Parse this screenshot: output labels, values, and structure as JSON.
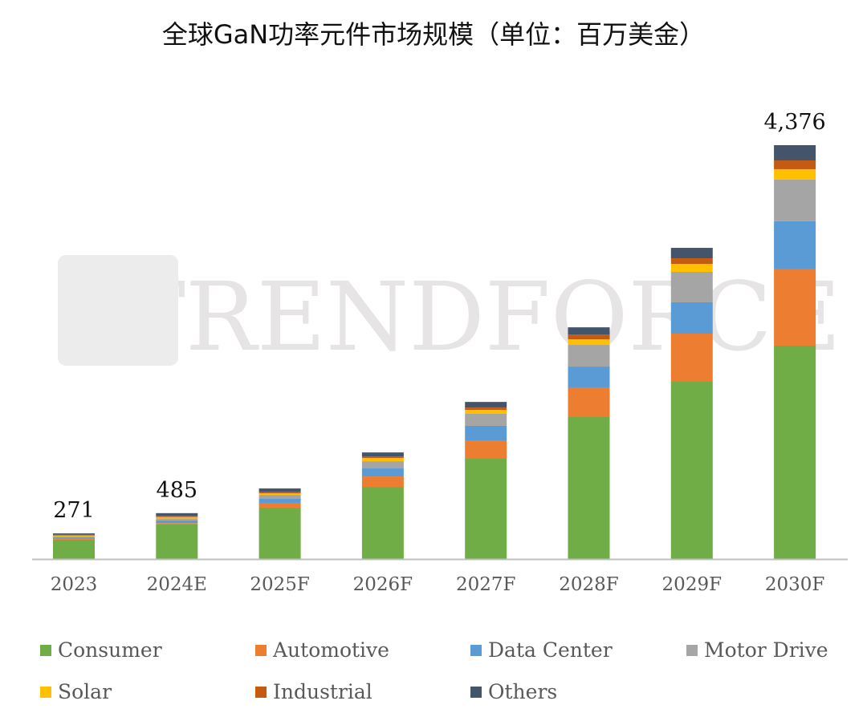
{
  "title": "全球GaN功率元件市场规模（单位：百万美金）",
  "watermark": "TRENDFORCE",
  "chart_data": {
    "type": "bar",
    "stacked": true,
    "title": "全球GaN功率元件市场规模（单位：百万美金）",
    "xlabel": "",
    "ylabel": "",
    "ylim": [
      0,
      4600
    ],
    "grid": false,
    "legend_position": "bottom",
    "categories": [
      "2023",
      "2024E",
      "2025F",
      "2026F",
      "2027F",
      "2028F",
      "2029F",
      "2030F"
    ],
    "total_labels": [
      "271",
      "485",
      "",
      "",
      "",
      "",
      "",
      "4,376"
    ],
    "series": [
      {
        "name": "Consumer",
        "color": "#70AD47",
        "values": [
          204,
          365,
          543,
          763,
          1068,
          1501,
          1874,
          2256
        ]
      },
      {
        "name": "Automotive",
        "color": "#ED7D31",
        "values": [
          12,
          15,
          51,
          110,
          187,
          314,
          509,
          806
        ]
      },
      {
        "name": "Data Center",
        "color": "#5B9BD5",
        "values": [
          12,
          28,
          42,
          85,
          153,
          220,
          331,
          509
        ]
      },
      {
        "name": "Motor Drive",
        "color": "#A5A5A5",
        "values": [
          10,
          20,
          42,
          76,
          127,
          229,
          322,
          441
        ]
      },
      {
        "name": "Solar",
        "color": "#FFC000",
        "values": [
          10,
          15,
          17,
          34,
          42,
          59,
          85,
          110
        ]
      },
      {
        "name": "Industrial",
        "color": "#C55A11",
        "values": [
          8,
          12,
          17,
          17,
          25,
          51,
          59,
          93
        ]
      },
      {
        "name": "Others",
        "color": "#44546A",
        "values": [
          15,
          30,
          34,
          42,
          59,
          76,
          110,
          161
        ]
      }
    ]
  }
}
